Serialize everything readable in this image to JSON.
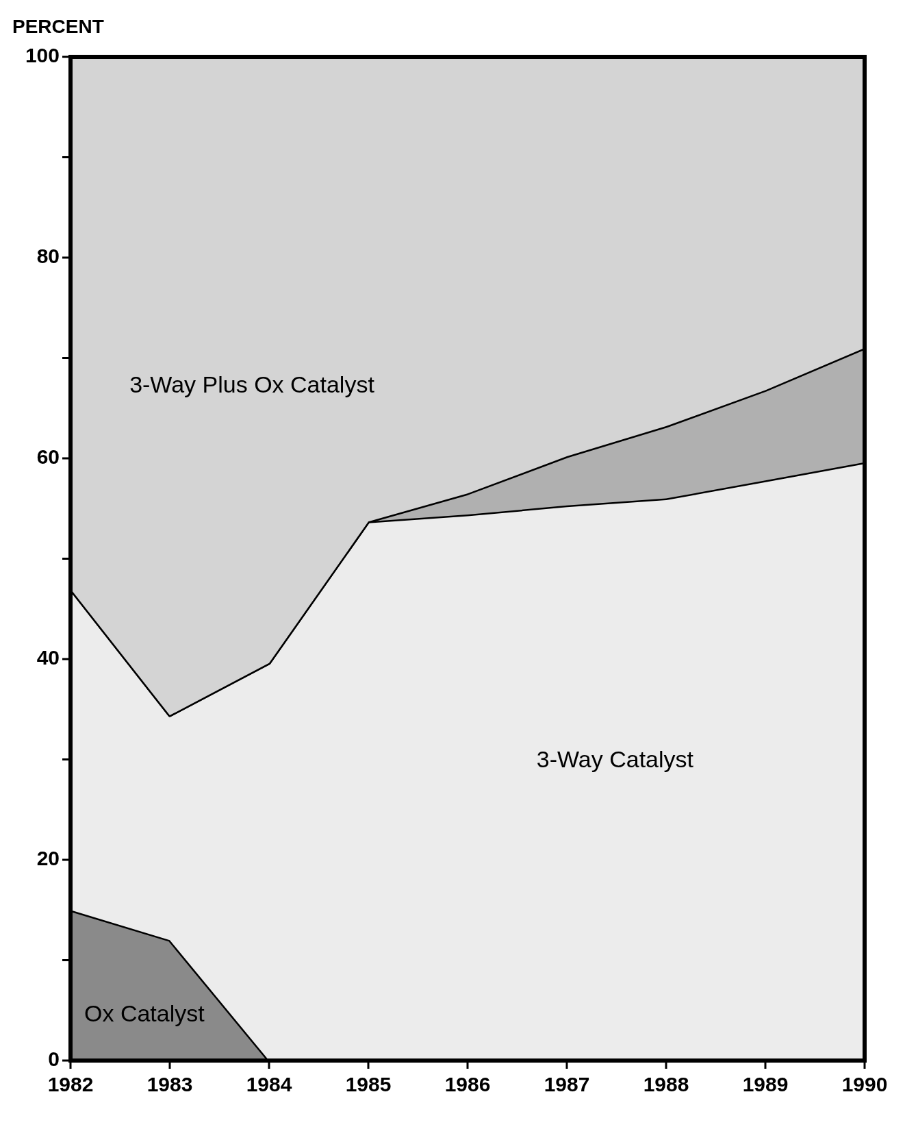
{
  "chart_data": {
    "type": "area",
    "stacked": true,
    "ylabel": "PERCENT",
    "x": [
      1982,
      1983,
      1984,
      1985,
      1986,
      1987,
      1988,
      1989,
      1990
    ],
    "xlim": [
      1982,
      1990
    ],
    "xticks": [
      1982,
      1983,
      1984,
      1985,
      1986,
      1987,
      1988,
      1989,
      1990
    ],
    "ylim": [
      0,
      100
    ],
    "yticks": [
      0,
      {
        "value": 10,
        "label": null
      },
      20,
      {
        "value": 30,
        "label": null
      },
      40,
      {
        "value": 50,
        "label": null
      },
      60,
      {
        "value": 70,
        "label": null
      },
      80,
      {
        "value": 90,
        "label": null
      },
      100
    ],
    "grid": false,
    "series": [
      {
        "name": "Ox Catalyst",
        "color": "#8a8a8a",
        "values": [
          15,
          12,
          0,
          0,
          0,
          0,
          0,
          0,
          0
        ]
      },
      {
        "name": "3-Way Catalyst",
        "color": "#ececec",
        "values": [
          32,
          22.4,
          39.6,
          53.7,
          54.4,
          55.3,
          56,
          57.8,
          59.6
        ]
      },
      {
        "color": "#b0b0b0",
        "values": [
          0,
          0,
          0,
          0,
          2.1,
          4.9,
          7.2,
          9,
          11.4
        ]
      },
      {
        "name": "3-Way Plus Ox Catalyst",
        "color": "#d4d4d4",
        "values": [
          53,
          65.6,
          60.4,
          46.3,
          43.5,
          39.8,
          36.8,
          33.2,
          29
        ]
      }
    ]
  }
}
